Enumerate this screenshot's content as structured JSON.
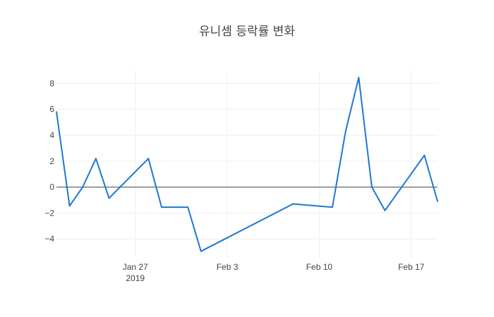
{
  "chart_data": {
    "type": "line",
    "title": "유니셈 등락률 변화",
    "xlabel": "",
    "ylabel": "",
    "x_ticks": [
      {
        "date": "2019-01-27",
        "label": "Jan 27",
        "sublabel": "2019"
      },
      {
        "date": "2019-02-03",
        "label": "Feb 3",
        "sublabel": ""
      },
      {
        "date": "2019-02-10",
        "label": "Feb 10",
        "sublabel": ""
      },
      {
        "date": "2019-02-17",
        "label": "Feb 17",
        "sublabel": ""
      }
    ],
    "y_ticks": [
      -4,
      -2,
      0,
      2,
      4,
      6,
      8
    ],
    "xlim": [
      "2019-01-21",
      "2019-02-19"
    ],
    "ylim": [
      -5.4,
      9.0
    ],
    "grid": true,
    "zero_line": true,
    "line_color": "#1f77d4",
    "series": [
      {
        "name": "",
        "x": [
          "2019-01-21",
          "2019-01-22",
          "2019-01-23",
          "2019-01-24",
          "2019-01-25",
          "2019-01-28",
          "2019-01-29",
          "2019-01-31",
          "2019-02-01",
          "2019-02-08",
          "2019-02-11",
          "2019-02-12",
          "2019-02-13",
          "2019-02-14",
          "2019-02-15",
          "2019-02-18",
          "2019-02-19"
        ],
        "values": [
          5.8,
          -1.45,
          0.0,
          2.2,
          -0.85,
          2.2,
          -1.55,
          -1.55,
          -4.95,
          -1.3,
          -1.55,
          4.3,
          8.45,
          0.0,
          -1.8,
          2.45,
          -1.1
        ]
      }
    ]
  }
}
